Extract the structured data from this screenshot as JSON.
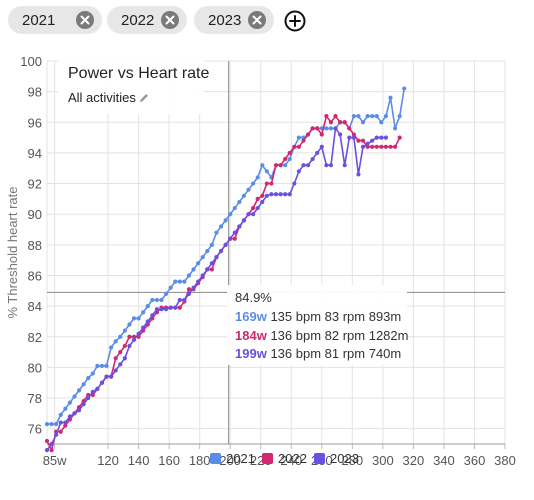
{
  "filters": {
    "chips": [
      {
        "label": "2021"
      },
      {
        "label": "2022"
      },
      {
        "label": "2023"
      }
    ],
    "add_icon": "plus-circle-icon",
    "remove_icon": "close-icon"
  },
  "overlay": {
    "title": "Power vs Heart rate",
    "subtitle": "All activities",
    "edit_icon": "pencil-icon"
  },
  "tooltip": {
    "value": "84.9%",
    "rows": [
      {
        "watts": "169w",
        "rest": "135 bpm 83 rpm 893m",
        "color": "#5b8de8"
      },
      {
        "watts": "184w",
        "rest": "136 bpm 82 rpm 1282m",
        "color": "#d1286f"
      },
      {
        "watts": "199w",
        "rest": "136 bpm 81 rpm 740m",
        "color": "#6b4fe0"
      }
    ]
  },
  "chart_data": {
    "type": "line",
    "title": "Power vs Heart rate",
    "subtitle": "All activities",
    "xlabel": "",
    "ylabel": "% Threshold heart rate",
    "xlim": [
      80,
      380
    ],
    "ylim": [
      75,
      100
    ],
    "x_ticks": [
      "85w",
      "120",
      "140",
      "160",
      "180",
      "200",
      "220",
      "240",
      "260",
      "280",
      "300",
      "320",
      "340",
      "360",
      "380"
    ],
    "x_tick_values": [
      85,
      120,
      140,
      160,
      180,
      200,
      220,
      240,
      260,
      280,
      300,
      320,
      340,
      360,
      380
    ],
    "y_ticks": [
      76,
      78,
      80,
      82,
      84,
      86,
      88,
      90,
      92,
      94,
      96,
      98,
      100
    ],
    "grid": true,
    "legend": "bottom",
    "crosshair": {
      "x": 199,
      "y": 84.9
    },
    "series": [
      {
        "name": "2021",
        "color": "#5b8de8",
        "points": [
          [
            80,
            76.3
          ],
          [
            83,
            76.3
          ],
          [
            86,
            76.3
          ],
          [
            89,
            76.9
          ],
          [
            92,
            77.3
          ],
          [
            95,
            77.7
          ],
          [
            98,
            78.1
          ],
          [
            101,
            78.5
          ],
          [
            104,
            78.9
          ],
          [
            107,
            79.3
          ],
          [
            110,
            79.6
          ],
          [
            113,
            80.1
          ],
          [
            116,
            80.1
          ],
          [
            119,
            80.1
          ],
          [
            122,
            81.3
          ],
          [
            125,
            81.7
          ],
          [
            128,
            82.0
          ],
          [
            131,
            82.4
          ],
          [
            134,
            82.8
          ],
          [
            137,
            83.2
          ],
          [
            140,
            83.2
          ],
          [
            143,
            83.6
          ],
          [
            146,
            84.0
          ],
          [
            149,
            84.4
          ],
          [
            152,
            84.4
          ],
          [
            155,
            84.4
          ],
          [
            158,
            84.8
          ],
          [
            161,
            85.2
          ],
          [
            164,
            85.6
          ],
          [
            167,
            85.6
          ],
          [
            170,
            85.6
          ],
          [
            173,
            86.0
          ],
          [
            176,
            86.4
          ],
          [
            179,
            86.8
          ],
          [
            182,
            87.2
          ],
          [
            185,
            87.6
          ],
          [
            188,
            88.0
          ],
          [
            191,
            88.8
          ],
          [
            194,
            89.2
          ],
          [
            197,
            89.6
          ],
          [
            200,
            90.0
          ],
          [
            203,
            90.4
          ],
          [
            206,
            90.8
          ],
          [
            209,
            91.2
          ],
          [
            212,
            91.6
          ],
          [
            215,
            92.0
          ],
          [
            218,
            92.4
          ],
          [
            221,
            93.2
          ],
          [
            224,
            92.8
          ],
          [
            227,
            92.4
          ],
          [
            230,
            93.2
          ],
          [
            233,
            93.2
          ],
          [
            236,
            93.2
          ],
          [
            239,
            93.6
          ],
          [
            242,
            94.4
          ],
          [
            245,
            95.0
          ],
          [
            248,
            95.0
          ],
          [
            251,
            95.2
          ],
          [
            254,
            95.6
          ],
          [
            257,
            95.6
          ],
          [
            260,
            95.6
          ],
          [
            263,
            95.6
          ],
          [
            266,
            95.6
          ],
          [
            269,
            95.6
          ],
          [
            272,
            96.0
          ],
          [
            275,
            96.0
          ],
          [
            278,
            95.6
          ],
          [
            281,
            96.4
          ],
          [
            284,
            96.4
          ],
          [
            287,
            96.0
          ],
          [
            290,
            96.4
          ],
          [
            293,
            96.4
          ],
          [
            296,
            96.4
          ],
          [
            299,
            96.0
          ],
          [
            302,
            96.4
          ],
          [
            305,
            97.6
          ],
          [
            308,
            95.6
          ],
          [
            311,
            96.4
          ],
          [
            314,
            98.2
          ]
        ]
      },
      {
        "name": "2022",
        "color": "#d1286f",
        "points": [
          [
            80,
            75.2
          ],
          [
            83,
            74.6
          ],
          [
            86,
            75.8
          ],
          [
            89,
            75.8
          ],
          [
            92,
            76.2
          ],
          [
            95,
            76.6
          ],
          [
            98,
            77.0
          ],
          [
            101,
            77.4
          ],
          [
            104,
            77.8
          ],
          [
            107,
            78.2
          ],
          [
            110,
            78.2
          ],
          [
            113,
            78.6
          ],
          [
            116,
            79.0
          ],
          [
            119,
            79.4
          ],
          [
            122,
            79.4
          ],
          [
            125,
            80.6
          ],
          [
            128,
            81.0
          ],
          [
            131,
            81.4
          ],
          [
            134,
            82.0
          ],
          [
            137,
            82.0
          ],
          [
            140,
            82.0
          ],
          [
            143,
            82.4
          ],
          [
            146,
            82.8
          ],
          [
            149,
            83.2
          ],
          [
            152,
            83.6
          ],
          [
            155,
            83.9
          ],
          [
            158,
            83.9
          ],
          [
            161,
            83.9
          ],
          [
            164,
            83.9
          ],
          [
            167,
            83.9
          ],
          [
            170,
            84.3
          ],
          [
            173,
            85.1
          ],
          [
            176,
            85.1
          ],
          [
            179,
            85.5
          ],
          [
            182,
            85.9
          ],
          [
            185,
            86.4
          ],
          [
            188,
            86.4
          ],
          [
            191,
            87.2
          ],
          [
            194,
            87.6
          ],
          [
            197,
            88.0
          ],
          [
            200,
            88.4
          ],
          [
            203,
            88.4
          ],
          [
            206,
            89.2
          ],
          [
            209,
            89.6
          ],
          [
            212,
            90.0
          ],
          [
            215,
            90.4
          ],
          [
            218,
            91.0
          ],
          [
            221,
            91.2
          ],
          [
            224,
            92.0
          ],
          [
            227,
            92.0
          ],
          [
            230,
            93.2
          ],
          [
            233,
            93.2
          ],
          [
            236,
            93.6
          ],
          [
            239,
            94.0
          ],
          [
            242,
            94.4
          ],
          [
            245,
            94.4
          ],
          [
            248,
            94.8
          ],
          [
            251,
            95.2
          ],
          [
            254,
            95.6
          ],
          [
            257,
            95.6
          ],
          [
            260,
            95.2
          ],
          [
            263,
            96.4
          ],
          [
            266,
            96.0
          ],
          [
            269,
            96.4
          ],
          [
            272,
            96.0
          ],
          [
            275,
            96.0
          ],
          [
            278,
            95.6
          ],
          [
            281,
            95.2
          ],
          [
            284,
            94.8
          ],
          [
            287,
            94.8
          ],
          [
            290,
            94.4
          ],
          [
            293,
            94.4
          ],
          [
            296,
            94.4
          ],
          [
            299,
            94.4
          ],
          [
            302,
            94.4
          ],
          [
            305,
            94.4
          ],
          [
            308,
            94.4
          ],
          [
            311,
            95.0
          ]
        ]
      },
      {
        "name": "2023",
        "color": "#6b4fe0",
        "points": [
          [
            80,
            74.6
          ],
          [
            83,
            75.0
          ],
          [
            86,
            75.6
          ],
          [
            89,
            76.4
          ],
          [
            92,
            76.4
          ],
          [
            95,
            76.8
          ],
          [
            98,
            77.0
          ],
          [
            101,
            77.2
          ],
          [
            104,
            77.6
          ],
          [
            107,
            78.0
          ],
          [
            110,
            78.4
          ],
          [
            113,
            78.6
          ],
          [
            116,
            79.0
          ],
          [
            119,
            79.4
          ],
          [
            122,
            79.4
          ],
          [
            125,
            79.8
          ],
          [
            128,
            80.2
          ],
          [
            131,
            80.6
          ],
          [
            134,
            81.4
          ],
          [
            137,
            81.8
          ],
          [
            140,
            82.2
          ],
          [
            143,
            82.6
          ],
          [
            146,
            83.0
          ],
          [
            149,
            83.4
          ],
          [
            152,
            83.8
          ],
          [
            155,
            83.8
          ],
          [
            158,
            83.8
          ],
          [
            161,
            83.9
          ],
          [
            164,
            83.9
          ],
          [
            167,
            84.4
          ],
          [
            170,
            84.4
          ],
          [
            173,
            84.8
          ],
          [
            176,
            85.2
          ],
          [
            179,
            85.6
          ],
          [
            182,
            86.0
          ],
          [
            185,
            86.4
          ],
          [
            188,
            86.8
          ],
          [
            191,
            87.2
          ],
          [
            194,
            87.6
          ],
          [
            197,
            88.0
          ],
          [
            200,
            88.4
          ],
          [
            203,
            88.8
          ],
          [
            206,
            89.2
          ],
          [
            209,
            89.6
          ],
          [
            212,
            90.0
          ],
          [
            215,
            90.0
          ],
          [
            218,
            90.4
          ],
          [
            221,
            90.8
          ],
          [
            224,
            91.2
          ],
          [
            227,
            91.3
          ],
          [
            230,
            91.3
          ],
          [
            233,
            91.3
          ],
          [
            236,
            91.3
          ],
          [
            239,
            91.3
          ],
          [
            242,
            92.0
          ],
          [
            245,
            92.8
          ],
          [
            248,
            93.2
          ],
          [
            251,
            93.2
          ],
          [
            254,
            93.6
          ],
          [
            257,
            94.0
          ],
          [
            260,
            94.4
          ],
          [
            263,
            93.2
          ],
          [
            266,
            93.2
          ],
          [
            269,
            95.6
          ],
          [
            272,
            95.2
          ],
          [
            275,
            93.2
          ],
          [
            278,
            95.0
          ],
          [
            281,
            95.0
          ],
          [
            284,
            92.6
          ],
          [
            287,
            94.4
          ],
          [
            290,
            94.6
          ],
          [
            293,
            94.8
          ],
          [
            296,
            95.0
          ],
          [
            299,
            95.0
          ],
          [
            302,
            95.0
          ]
        ]
      }
    ]
  }
}
